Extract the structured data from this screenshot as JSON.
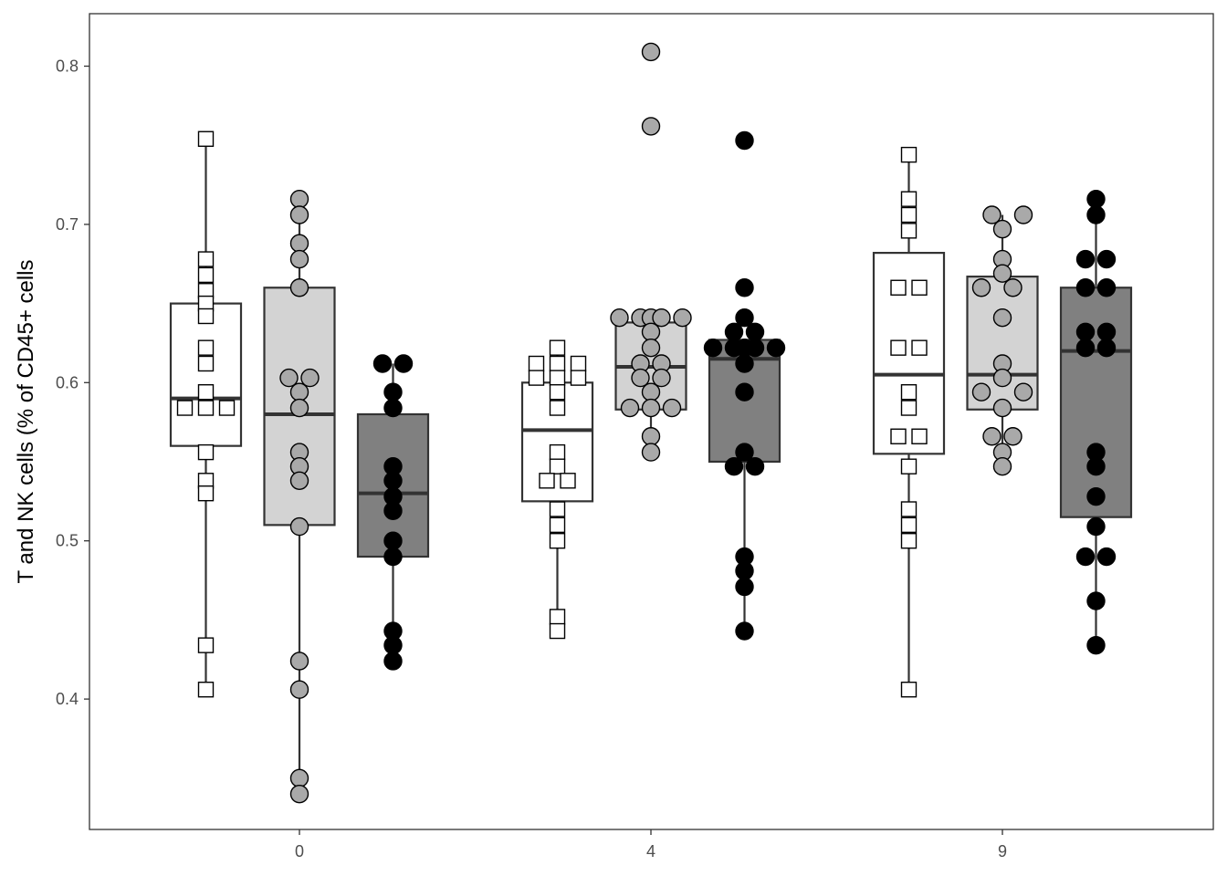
{
  "chart_data": {
    "type": "box",
    "title": "",
    "xlabel": "",
    "ylabel": "T and NK cells (% of CD45+ cells",
    "categories": [
      "0",
      "4",
      "9"
    ],
    "y_ticks": [
      "0.4",
      "0.5",
      "0.6",
      "0.7",
      "0.8"
    ],
    "ylim": [
      0.335,
      0.85
    ],
    "grid": false,
    "legend": "none",
    "series": [
      {
        "marker": "square",
        "box_fill": "#ffffff",
        "point_fill": "#ffffff",
        "boxes": [
          {
            "category": "0",
            "q1": 0.56,
            "median": 0.59,
            "q3": 0.65,
            "min": 0.406,
            "max": 0.754
          },
          {
            "category": "4",
            "q1": 0.525,
            "median": 0.57,
            "q3": 0.6,
            "min": 0.443,
            "max": 0.622
          },
          {
            "category": "9",
            "q1": 0.555,
            "median": 0.605,
            "q3": 0.682,
            "min": 0.406,
            "max": 0.744
          }
        ],
        "points": [
          {
            "category": "0",
            "values": [
              0.754,
              0.678,
              0.668,
              0.658,
              0.65,
              0.642,
              0.622,
              0.612,
              0.594,
              0.584,
              0.584,
              0.584,
              0.556,
              0.538,
              0.53,
              0.434,
              0.406
            ],
            "offsets": [
              0,
              0,
              0,
              0,
              0,
              0,
              0,
              0,
              0,
              -1,
              0,
              1,
              0,
              0,
              0,
              0,
              0
            ]
          },
          {
            "category": "4",
            "values": [
              0.622,
              0.612,
              0.612,
              0.612,
              0.603,
              0.603,
              0.603,
              0.594,
              0.584,
              0.556,
              0.547,
              0.538,
              0.538,
              0.52,
              0.51,
              0.5,
              0.452,
              0.443
            ],
            "offsets": [
              0,
              -1,
              0,
              1,
              -1,
              0,
              1,
              0,
              0,
              0,
              0,
              -0.5,
              0.5,
              0,
              0,
              0,
              0,
              0
            ]
          },
          {
            "category": "9",
            "values": [
              0.744,
              0.716,
              0.706,
              0.696,
              0.66,
              0.66,
              0.622,
              0.622,
              0.594,
              0.584,
              0.566,
              0.566,
              0.547,
              0.52,
              0.51,
              0.5,
              0.406
            ],
            "offsets": [
              0,
              0,
              0,
              0,
              -0.5,
              0.5,
              -0.5,
              0.5,
              0,
              0,
              -0.5,
              0.5,
              0,
              0,
              0,
              0,
              0
            ]
          }
        ]
      },
      {
        "marker": "circle",
        "box_fill": "#d3d3d3",
        "point_fill": "#a9a9a9",
        "boxes": [
          {
            "category": "0",
            "q1": 0.51,
            "median": 0.58,
            "q3": 0.66,
            "min": 0.34,
            "max": 0.716
          },
          {
            "category": "4",
            "q1": 0.583,
            "median": 0.61,
            "q3": 0.638,
            "min": 0.556,
            "max": 0.641
          },
          {
            "category": "9",
            "q1": 0.583,
            "median": 0.605,
            "q3": 0.667,
            "min": 0.547,
            "max": 0.706
          }
        ]
      },
      {
        "marker": "circle",
        "box_fill": "#808080",
        "point_fill": "#000000",
        "boxes": [
          {
            "category": "0",
            "q1": 0.49,
            "median": 0.53,
            "q3": 0.58,
            "min": 0.424,
            "max": 0.612
          },
          {
            "category": "4",
            "q1": 0.55,
            "median": 0.615,
            "q3": 0.627,
            "min": 0.443,
            "max": 0.627
          },
          {
            "category": "9",
            "q1": 0.515,
            "median": 0.62,
            "q3": 0.66,
            "min": 0.434,
            "max": 0.716
          }
        ]
      }
    ],
    "outliers": [
      {
        "series": 1,
        "category": "4",
        "values": [
          0.809,
          0.762
        ]
      },
      {
        "series": 2,
        "category": "4",
        "values": [
          0.753
        ]
      }
    ],
    "points_extra": [
      {
        "series": 1,
        "category": "0",
        "values": [
          0.716,
          0.706,
          0.688,
          0.678,
          0.66,
          0.603,
          0.603,
          0.594,
          0.584,
          0.556,
          0.547,
          0.538,
          0.509,
          0.424,
          0.406,
          0.35,
          0.34
        ],
        "offsets": [
          0,
          0,
          0,
          0,
          0,
          -0.5,
          0.5,
          0,
          0,
          0,
          0,
          0,
          0,
          0,
          0,
          0,
          0
        ]
      },
      {
        "series": 1,
        "category": "4",
        "values": [
          0.641,
          0.641,
          0.641,
          0.641,
          0.641,
          0.632,
          0.622,
          0.612,
          0.612,
          0.603,
          0.603,
          0.594,
          0.584,
          0.584,
          0.584,
          0.566,
          0.556
        ],
        "offsets": [
          -1.5,
          -0.5,
          0,
          0.5,
          1.5,
          0,
          0,
          -0.5,
          0.5,
          -0.5,
          0.5,
          0,
          -1,
          0,
          1,
          0,
          0
        ]
      },
      {
        "series": 1,
        "category": "9",
        "values": [
          0.706,
          0.706,
          0.697,
          0.678,
          0.669,
          0.66,
          0.66,
          0.641,
          0.612,
          0.603,
          0.594,
          0.594,
          0.584,
          0.566,
          0.566,
          0.556,
          0.547
        ],
        "offsets": [
          -0.5,
          1,
          0,
          0,
          0,
          -1,
          0.5,
          0,
          0,
          0,
          -1,
          1,
          0,
          -0.5,
          0.5,
          0,
          0
        ]
      },
      {
        "series": 2,
        "category": "0",
        "values": [
          0.612,
          0.612,
          0.594,
          0.584,
          0.547,
          0.538,
          0.528,
          0.519,
          0.5,
          0.49,
          0.443,
          0.434,
          0.424
        ],
        "offsets": [
          -0.5,
          0.5,
          0,
          0,
          0,
          0,
          0,
          0,
          0,
          0,
          0,
          0,
          0
        ]
      },
      {
        "series": 2,
        "category": "4",
        "values": [
          0.66,
          0.641,
          0.632,
          0.632,
          0.622,
          0.622,
          0.622,
          0.622,
          0.622,
          0.612,
          0.594,
          0.556,
          0.547,
          0.547,
          0.49,
          0.481,
          0.471,
          0.443
        ],
        "offsets": [
          0,
          0,
          -0.5,
          0.5,
          -1.5,
          -0.5,
          0,
          0.5,
          1.5,
          0,
          0,
          0,
          -0.5,
          0.5,
          0,
          0,
          0,
          0
        ]
      },
      {
        "series": 2,
        "category": "9",
        "values": [
          0.716,
          0.706,
          0.678,
          0.678,
          0.66,
          0.66,
          0.632,
          0.632,
          0.622,
          0.622,
          0.556,
          0.547,
          0.528,
          0.509,
          0.49,
          0.49,
          0.462,
          0.434
        ],
        "offsets": [
          0,
          0,
          -0.5,
          0.5,
          -0.5,
          0.5,
          -0.5,
          0.5,
          -0.5,
          0.5,
          0,
          0,
          0,
          0,
          -0.5,
          0.5,
          0,
          0
        ]
      }
    ]
  }
}
